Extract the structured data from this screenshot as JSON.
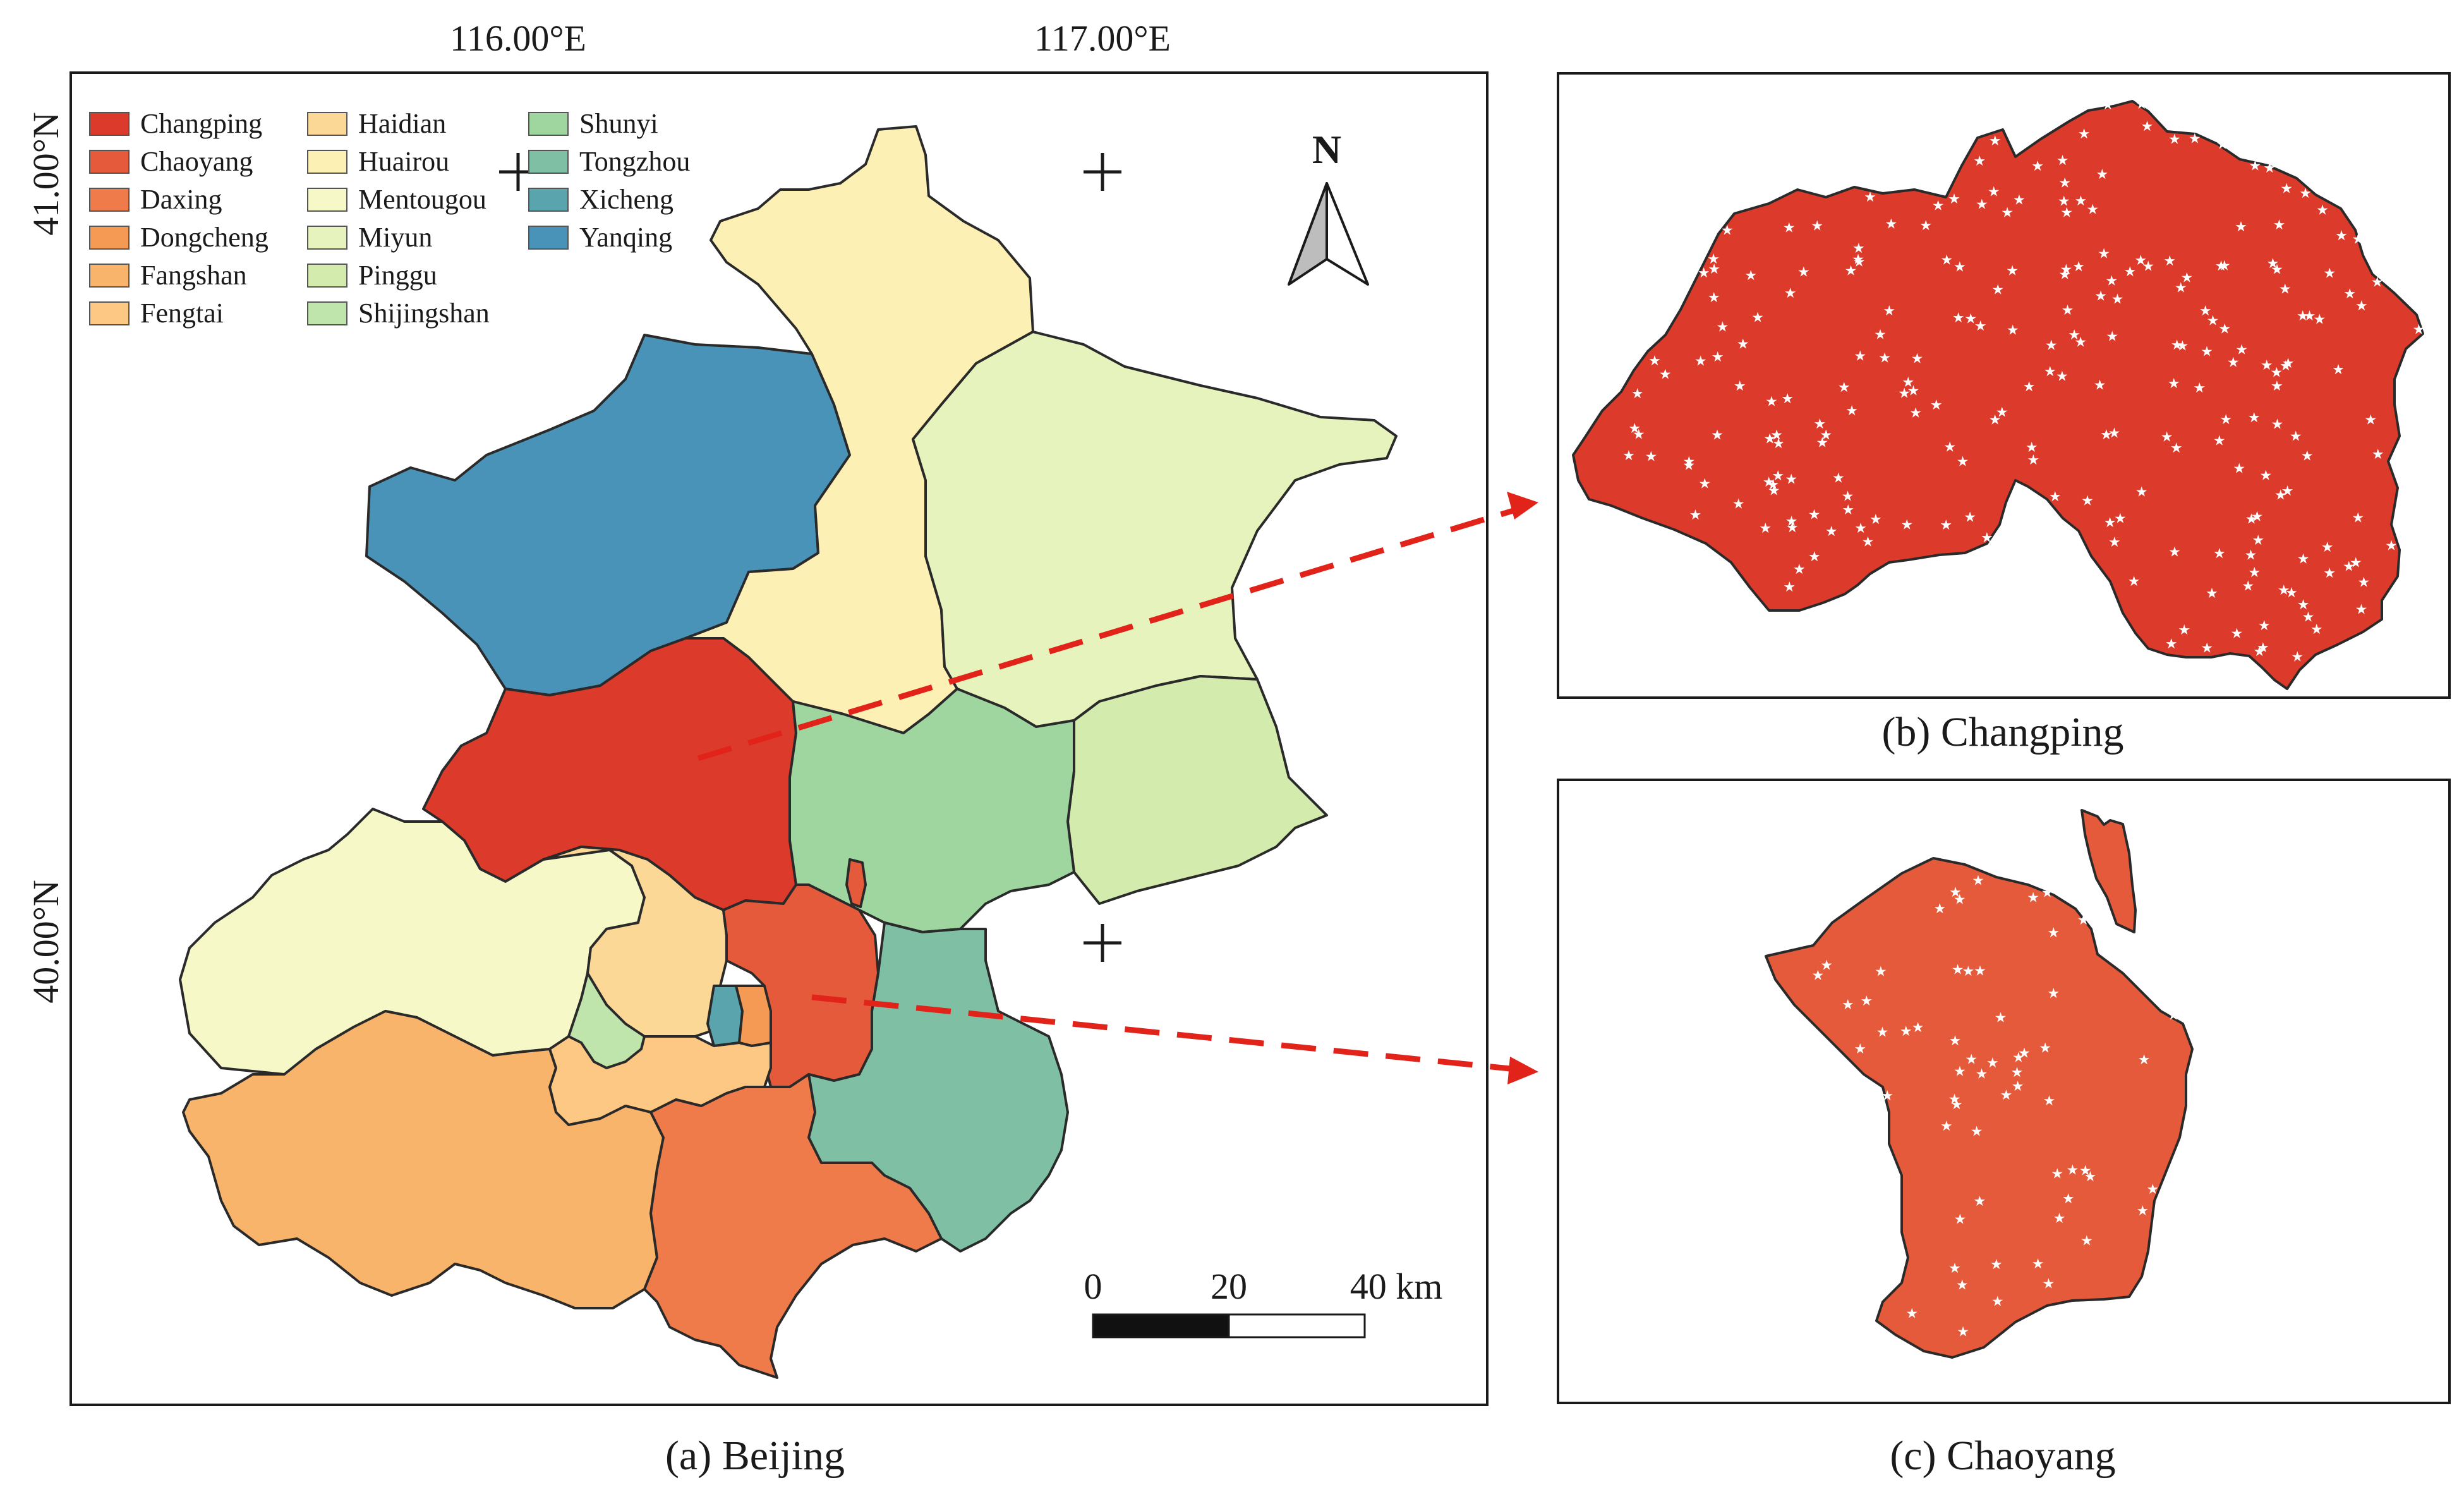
{
  "map": {
    "caption": "(a) Beijing",
    "lon_labels": [
      "116.00°E",
      "117.00°E"
    ],
    "lat_labels": [
      "41.00°N",
      "40.00°N"
    ],
    "north_label": "N",
    "scale_bar": {
      "labels": [
        "0",
        "20",
        "40 km"
      ]
    }
  },
  "legend": [
    {
      "name": "Changping",
      "color": "#dc3b2c"
    },
    {
      "name": "Chaoyang",
      "color": "#e45a3a"
    },
    {
      "name": "Daxing",
      "color": "#ef7b4a"
    },
    {
      "name": "Dongcheng",
      "color": "#f59a55"
    },
    {
      "name": "Fangshan",
      "color": "#f8b46a"
    },
    {
      "name": "Fengtai",
      "color": "#fcc883"
    },
    {
      "name": "Haidian",
      "color": "#fcd896"
    },
    {
      "name": "Huairou",
      "color": "#fdf0b5"
    },
    {
      "name": "Mentougou",
      "color": "#f7f8c8"
    },
    {
      "name": "Miyun",
      "color": "#e6f3bc"
    },
    {
      "name": "Pinggu",
      "color": "#d3ecad"
    },
    {
      "name": "Shijingshan",
      "color": "#bfe5ac"
    },
    {
      "name": "Shunyi",
      "color": "#9fd6a0"
    },
    {
      "name": "Tongzhou",
      "color": "#7fc0a4"
    },
    {
      "name": "Xicheng",
      "color": "#5aa4ad"
    },
    {
      "name": "Yanqing",
      "color": "#4a93b8"
    }
  ],
  "insets": [
    {
      "caption": "(b) Changping",
      "color": "#dc3b2c"
    },
    {
      "caption": "(c) Chaoyang",
      "color": "#e45a3a"
    }
  ]
}
